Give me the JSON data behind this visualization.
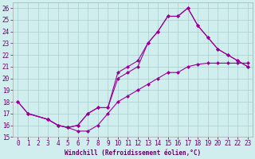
{
  "background_color": "#d0eeee",
  "grid_color": "#aacccc",
  "line_color": "#990099",
  "xlabel": "Windchill (Refroidissement éolien,°C)",
  "xlim_min": -0.5,
  "xlim_max": 23.5,
  "ylim_min": 15,
  "ylim_max": 26.5,
  "xticks": [
    0,
    1,
    2,
    3,
    4,
    5,
    6,
    7,
    8,
    9,
    10,
    11,
    12,
    13,
    14,
    15,
    16,
    17,
    18,
    19,
    20,
    21,
    22,
    23
  ],
  "yticks": [
    15,
    16,
    17,
    18,
    19,
    20,
    21,
    22,
    23,
    24,
    25,
    26
  ],
  "line1_x": [
    0,
    1,
    3,
    4,
    5,
    6,
    7,
    8,
    9,
    10,
    11,
    12,
    13,
    14,
    15,
    16,
    17,
    18,
    19,
    20,
    21,
    22,
    23
  ],
  "line1_y": [
    18,
    17,
    16.5,
    16.0,
    15.8,
    16.0,
    17.0,
    17.5,
    17.5,
    20.5,
    21.0,
    21.5,
    23.0,
    24.0,
    25.3,
    25.3,
    26.0,
    24.5,
    23.5,
    22.5,
    22.0,
    21.5,
    21.0
  ],
  "line2_x": [
    1,
    3,
    4,
    5,
    6,
    7,
    8,
    9,
    10,
    11,
    12,
    13,
    14,
    15,
    16,
    17,
    18,
    19,
    20,
    21,
    22,
    23
  ],
  "line2_y": [
    17,
    16.5,
    16.0,
    15.8,
    16.0,
    17.0,
    17.5,
    17.5,
    20.0,
    20.5,
    21.0,
    23.0,
    24.0,
    25.3,
    25.3,
    26.0,
    24.5,
    23.5,
    22.5,
    22.0,
    21.5,
    21.0
  ],
  "line3_x": [
    0,
    1,
    3,
    4,
    5,
    6,
    7,
    8,
    9,
    10,
    11,
    12,
    13,
    14,
    15,
    16,
    17,
    18,
    19,
    20,
    21,
    22,
    23
  ],
  "line3_y": [
    18,
    17,
    16.5,
    16.0,
    15.8,
    15.5,
    15.5,
    16.0,
    17.0,
    18.0,
    18.5,
    19.0,
    19.5,
    20.0,
    20.5,
    20.5,
    21.0,
    21.2,
    21.3,
    21.3,
    21.3,
    21.3,
    21.3
  ],
  "marker": "D",
  "markersize": 2.5,
  "linewidth": 0.8,
  "tick_fontsize": 5.5,
  "xlabel_fontsize": 5.5
}
